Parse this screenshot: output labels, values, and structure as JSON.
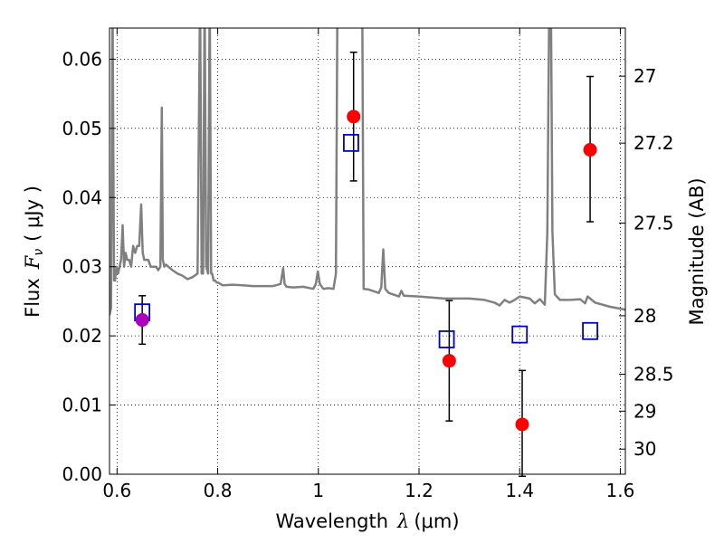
{
  "chart_data": {
    "type": "scatter",
    "xlabel_prefix": "Wavelength",
    "xlabel_symbol": "λ",
    "xlabel_unit": "(μm)",
    "ylabel_prefix": "Flux",
    "ylabel_symbol": "F",
    "ylabel_sub": "ν",
    "ylabel_unit": "( μJy )",
    "y2label": "Magnitude (AB)",
    "xlim": [
      0.585,
      1.61
    ],
    "ylim": [
      0.0,
      0.0645
    ],
    "grid": true,
    "x_ticks": [
      {
        "value": 0.6,
        "label": "0.6"
      },
      {
        "value": 0.8,
        "label": "0.8"
      },
      {
        "value": 1.0,
        "label": "1"
      },
      {
        "value": 1.2,
        "label": "1.2"
      },
      {
        "value": 1.4,
        "label": "1.4"
      },
      {
        "value": 1.6,
        "label": "1.6"
      }
    ],
    "y_ticks": [
      {
        "value": 0.0,
        "label": "0.00"
      },
      {
        "value": 0.01,
        "label": "0.01"
      },
      {
        "value": 0.02,
        "label": "0.02"
      },
      {
        "value": 0.03,
        "label": "0.03"
      },
      {
        "value": 0.04,
        "label": "0.04"
      },
      {
        "value": 0.05,
        "label": "0.05"
      },
      {
        "value": 0.06,
        "label": "0.06"
      }
    ],
    "y2_ticks": [
      {
        "value": 27.0,
        "label": "27"
      },
      {
        "value": 27.2,
        "label": "27.2"
      },
      {
        "value": 27.5,
        "label": "27.5"
      },
      {
        "value": 28.0,
        "label": "28"
      },
      {
        "value": 28.5,
        "label": "28.5"
      },
      {
        "value": 29.0,
        "label": "29"
      },
      {
        "value": 30.0,
        "label": "30"
      }
    ],
    "observed": {
      "marker": "circle",
      "points": [
        {
          "x": 0.65,
          "y": 0.0223,
          "yerr_low": 0.0035,
          "yerr_high": 0.0035,
          "color": "#aa00bb"
        },
        {
          "x": 1.07,
          "y": 0.0517,
          "yerr_low": 0.0093,
          "yerr_high": 0.0093,
          "color": "#ff0000"
        },
        {
          "x": 1.26,
          "y": 0.0164,
          "yerr_low": 0.0087,
          "yerr_high": 0.0087,
          "color": "#ff0000"
        },
        {
          "x": 1.405,
          "y": 0.0072,
          "yerr_low": 0.0075,
          "yerr_high": 0.0078,
          "color": "#ff0000"
        },
        {
          "x": 1.54,
          "y": 0.0469,
          "yerr_low": 0.0104,
          "yerr_high": 0.0106,
          "color": "#ff0000"
        }
      ]
    },
    "model_photometry": {
      "marker": "square-open",
      "color": "#0000cc",
      "points": [
        {
          "x": 0.65,
          "y": 0.0234
        },
        {
          "x": 1.065,
          "y": 0.0479
        },
        {
          "x": 1.255,
          "y": 0.0195
        },
        {
          "x": 1.4,
          "y": 0.0202
        },
        {
          "x": 1.54,
          "y": 0.0207
        }
      ]
    },
    "model_spectrum": {
      "color": "#808080",
      "x": [
        0.585,
        0.588,
        0.591,
        0.594,
        0.596,
        0.599,
        0.602,
        0.605,
        0.608,
        0.611,
        0.614,
        0.617,
        0.62,
        0.624,
        0.628,
        0.632,
        0.636,
        0.64,
        0.644,
        0.648,
        0.651,
        0.654,
        0.657,
        0.662,
        0.667,
        0.672,
        0.677,
        0.682,
        0.686,
        0.689,
        0.691,
        0.694,
        0.697,
        0.702,
        0.71,
        0.72,
        0.73,
        0.74,
        0.75,
        0.76,
        0.765,
        0.768,
        0.771,
        0.774,
        0.777,
        0.781,
        0.784,
        0.787,
        0.789,
        0.792,
        0.795,
        0.798,
        0.801,
        0.81,
        0.83,
        0.85,
        0.87,
        0.89,
        0.91,
        0.925,
        0.93,
        0.933,
        0.937,
        0.95,
        0.97,
        0.99,
        0.995,
        0.999,
        1.003,
        1.01,
        1.02,
        1.03,
        1.035,
        1.038,
        1.042,
        1.046,
        1.05,
        1.055,
        1.06,
        1.065,
        1.07,
        1.075,
        1.08,
        1.083,
        1.087,
        1.09,
        1.1,
        1.12,
        1.125,
        1.129,
        1.133,
        1.14,
        1.16,
        1.165,
        1.17,
        1.2,
        1.25,
        1.3,
        1.33,
        1.35,
        1.36,
        1.37,
        1.38,
        1.39,
        1.4,
        1.42,
        1.43,
        1.44,
        1.45,
        1.455,
        1.459,
        1.462,
        1.465,
        1.47,
        1.48,
        1.5,
        1.52,
        1.53,
        1.535,
        1.55,
        1.58,
        1.61
      ],
      "y": [
        0.023,
        0.024,
        0.07,
        0.028,
        0.028,
        0.03,
        0.029,
        0.03,
        0.031,
        0.036,
        0.03,
        0.032,
        0.031,
        0.031,
        0.03,
        0.033,
        0.032,
        0.033,
        0.033,
        0.039,
        0.032,
        0.031,
        0.031,
        0.031,
        0.03,
        0.03,
        0.03,
        0.0295,
        0.03,
        0.053,
        0.031,
        0.03,
        0.0303,
        0.03,
        0.0295,
        0.029,
        0.0287,
        0.0282,
        0.0285,
        0.029,
        0.07,
        0.029,
        0.029,
        0.07,
        0.03,
        0.029,
        0.07,
        0.029,
        0.029,
        0.028,
        0.028,
        0.0277,
        0.0277,
        0.0273,
        0.0274,
        0.0273,
        0.0272,
        0.0272,
        0.0272,
        0.0275,
        0.0298,
        0.0275,
        0.0271,
        0.027,
        0.0271,
        0.0268,
        0.0275,
        0.0293,
        0.0275,
        0.0268,
        0.0269,
        0.0268,
        0.029,
        0.07,
        0.07,
        0.07,
        0.07,
        0.07,
        0.07,
        0.07,
        0.07,
        0.07,
        0.07,
        0.07,
        0.07,
        0.0268,
        0.0267,
        0.0262,
        0.027,
        0.0325,
        0.0268,
        0.0262,
        0.0257,
        0.0265,
        0.0258,
        0.0257,
        0.0254,
        0.0254,
        0.0252,
        0.0248,
        0.0244,
        0.0252,
        0.0248,
        0.0252,
        0.0257,
        0.0254,
        0.0247,
        0.0253,
        0.0245,
        0.035,
        0.07,
        0.07,
        0.035,
        0.026,
        0.0252,
        0.0252,
        0.0253,
        0.0247,
        0.0257,
        0.0248,
        0.0242,
        0.0238
      ]
    }
  }
}
